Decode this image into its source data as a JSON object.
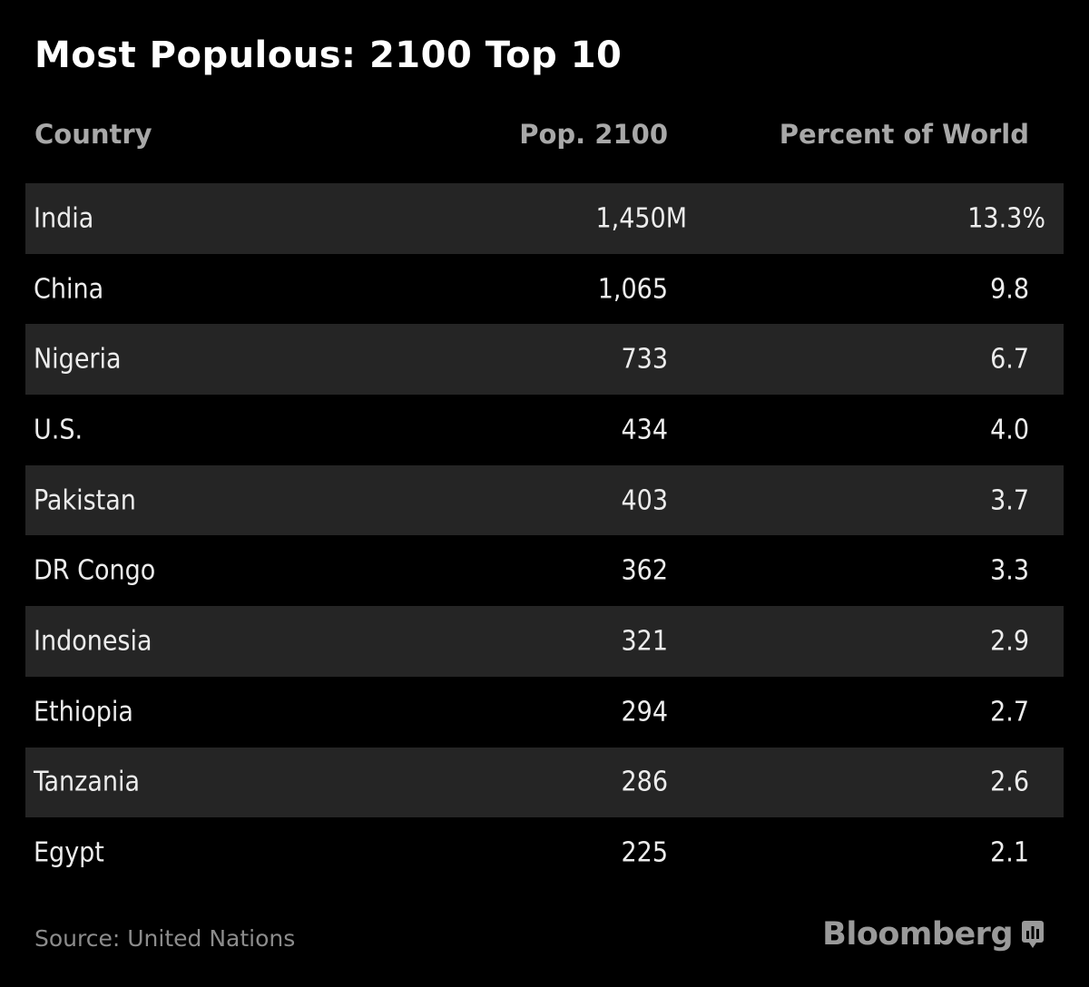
{
  "title": "Most Populous: 2100 Top 10",
  "chart_data": {
    "type": "table",
    "title": "Most Populous: 2100 Top 10",
    "columns": [
      "Country",
      "Pop. 2100",
      "Percent of World"
    ],
    "rows": [
      {
        "country": "India",
        "pop": "1,450M",
        "pct": "13.3%"
      },
      {
        "country": "China",
        "pop": "1,065",
        "pct": "9.8"
      },
      {
        "country": "Nigeria",
        "pop": "733",
        "pct": "6.7"
      },
      {
        "country": "U.S.",
        "pop": "434",
        "pct": "4.0"
      },
      {
        "country": "Pakistan",
        "pop": "403",
        "pct": "3.7"
      },
      {
        "country": "DR Congo",
        "pop": "362",
        "pct": "3.3"
      },
      {
        "country": "Indonesia",
        "pop": "321",
        "pct": "2.9"
      },
      {
        "country": "Ethiopia",
        "pop": "294",
        "pct": "2.7"
      },
      {
        "country": "Tanzania",
        "pop": "286",
        "pct": "2.6"
      },
      {
        "country": "Egypt",
        "pop": "225",
        "pct": "2.1"
      }
    ],
    "units": {
      "pop": "millions",
      "pct": "percent"
    }
  },
  "footer": {
    "source": "Source: United Nations",
    "brand": "Bloomberg",
    "brand_icon": "bar-chart-icon"
  },
  "colors": {
    "background": "#000000",
    "row_shade": "#252525",
    "title": "#ffffff",
    "header_text": "#a8a8a8",
    "cell_text": "#ececec",
    "footer_text": "#8c8c8c"
  }
}
